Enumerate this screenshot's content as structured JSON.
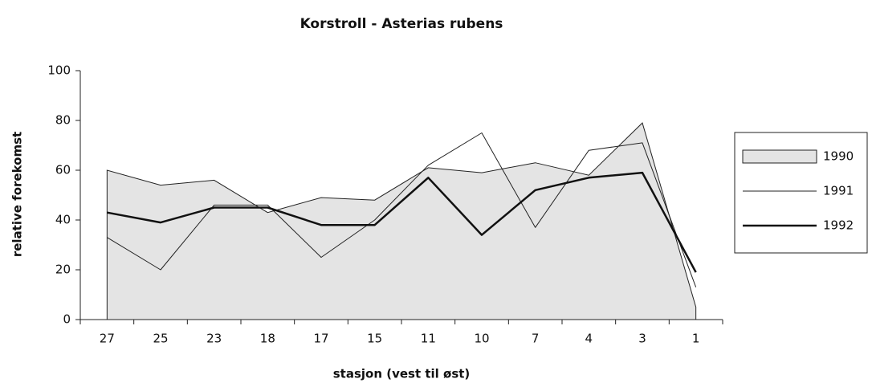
{
  "chart_data": {
    "type": "line",
    "title": "Korstroll - Asterias rubens",
    "x_label": "stasjon (vest til øst)",
    "y_label": "relative forekomst",
    "categories": [
      "27",
      "25",
      "23",
      "18",
      "17",
      "15",
      "11",
      "10",
      "7",
      "4",
      "3",
      "1"
    ],
    "series": [
      {
        "name": "1990",
        "kind": "area",
        "color": "#e4e4e4",
        "values": [
          60,
          54,
          56,
          43,
          49,
          48,
          61,
          59,
          63,
          58,
          79,
          5
        ]
      },
      {
        "name": "1991",
        "kind": "line",
        "color": "#222222",
        "width": 1,
        "values": [
          33,
          20,
          46,
          46,
          25,
          40,
          62,
          75,
          37,
          68,
          71,
          13
        ]
      },
      {
        "name": "1992",
        "kind": "line",
        "color": "#111111",
        "width": 2.5,
        "values": [
          43,
          39,
          45,
          45,
          38,
          38,
          57,
          34,
          52,
          57,
          59,
          19
        ]
      }
    ],
    "ylim": [
      0,
      100
    ],
    "yticks": [
      0,
      20,
      40,
      60,
      80,
      100
    ],
    "legend": "right"
  }
}
